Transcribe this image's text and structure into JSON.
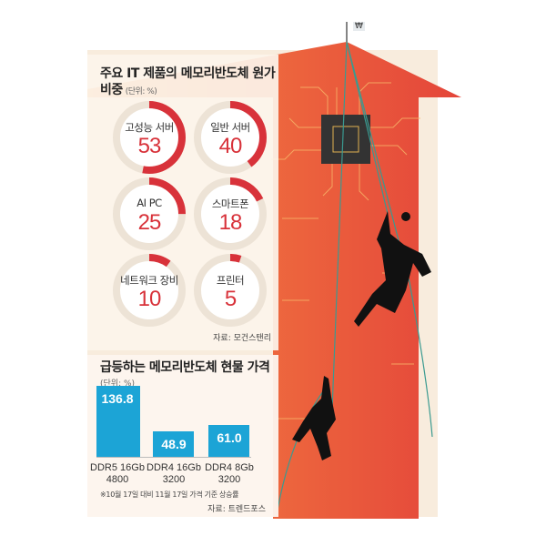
{
  "illustration": {
    "flag_symbol": "₩",
    "colors": {
      "arrow": "#e5533d",
      "arrow_light": "#f08a3c",
      "chip": "#333333"
    }
  },
  "chart_data": [
    {
      "type": "pie",
      "title": "주요 IT 제품의 메모리반도체 원가 비중",
      "unit": "(단위: %)",
      "categories": [
        "고성능 서버",
        "일반 서버",
        "AI PC",
        "스마트폰",
        "네트워크 장비",
        "프린터"
      ],
      "values": [
        53,
        40,
        25,
        18,
        10,
        5
      ],
      "source": "자료: 모건스탠리",
      "colors": {
        "fill": "#d8323a",
        "track": "#ede3d6"
      }
    },
    {
      "type": "bar",
      "title": "급등하는 메모리반도체 현물 가격",
      "unit": "(단위: %)",
      "categories": [
        [
          "DDR5 16Gb",
          "4800"
        ],
        [
          "DDR4 16Gb",
          "3200"
        ],
        [
          "DDR4 8Gb",
          "3200"
        ]
      ],
      "values": [
        136.8,
        48.9,
        61.0
      ],
      "value_labels": [
        "136.8",
        "48.9",
        "61.0"
      ],
      "note": "※10월 17일 대비 11월 17일 가격 기준 상승률",
      "source": "자료: 트렌드포스",
      "colors": {
        "bar": "#1ca4d6"
      }
    }
  ]
}
